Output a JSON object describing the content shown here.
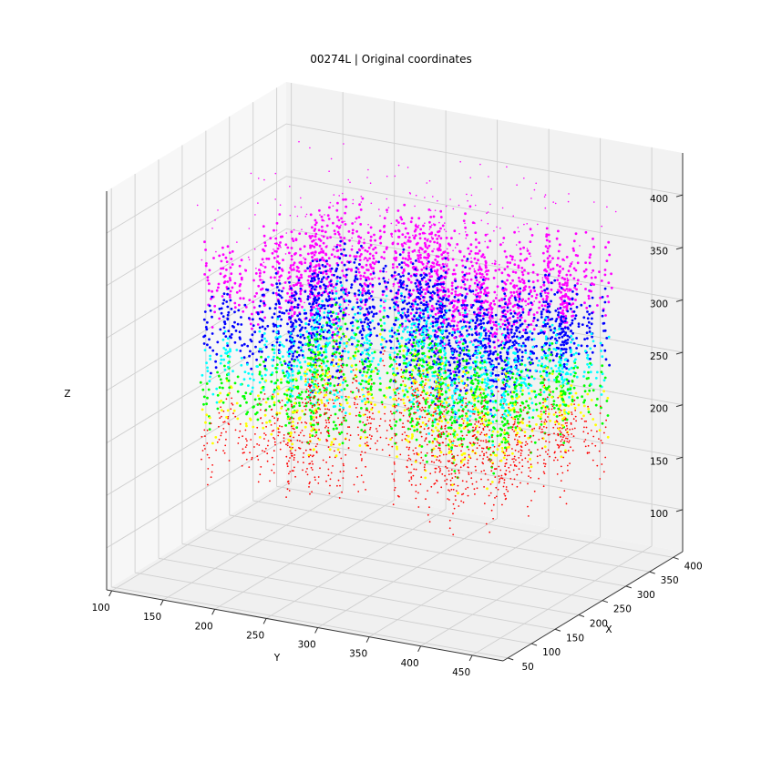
{
  "chart_data": {
    "type": "scatter",
    "title": "00274L | Original coordinates",
    "xlabel": "X",
    "ylabel": "Y",
    "zlabel": "Z",
    "x_ticks": [
      50,
      100,
      150,
      200,
      250,
      300,
      350,
      400
    ],
    "y_ticks": [
      100,
      150,
      200,
      250,
      300,
      350,
      400,
      450
    ],
    "z_ticks": [
      100,
      150,
      200,
      250,
      300,
      350,
      400
    ],
    "xlim": [
      40,
      420
    ],
    "ylim": [
      95,
      480
    ],
    "zlim": [
      60,
      440
    ],
    "grid": true,
    "colormap": "hsv",
    "colors": [
      "#ff0000",
      "#ffff00",
      "#00ff00",
      "#00ffff",
      "#0000ff",
      "#ff00ff"
    ],
    "point_cloud": {
      "x_range": [
        120,
        380
      ],
      "y_range": [
        140,
        440
      ],
      "z_range": [
        110,
        420
      ],
      "dense_z_range": [
        200,
        350
      ]
    }
  }
}
